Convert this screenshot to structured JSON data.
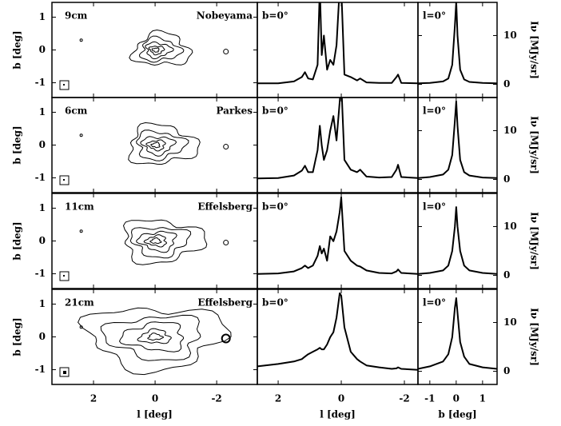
{
  "chart_data": [
    {
      "type": "contour",
      "label": "9cm",
      "telescope": "Nobeyama",
      "xlim": [
        3.35,
        -3.32
      ],
      "ylim": [
        -1.45,
        1.45
      ],
      "xticks": [
        2,
        0,
        -2
      ],
      "yticks": [
        1,
        0,
        -1
      ],
      "ylabel": "b [deg]"
    },
    {
      "type": "line",
      "annotation": "b=0°",
      "xlim": [
        2.66,
        -2.43
      ],
      "ylim": [
        -2.7,
        16.8
      ],
      "xticks": [
        2,
        0,
        -2
      ],
      "x": [
        2.66,
        2.0,
        1.5,
        1.25,
        1.15,
        1.05,
        0.9,
        0.75,
        0.68,
        0.62,
        0.55,
        0.45,
        0.35,
        0.25,
        0.15,
        0.05,
        0.0,
        -0.1,
        -0.3,
        -0.5,
        -0.6,
        -0.8,
        -1.2,
        -1.6,
        -1.75,
        -1.8,
        -1.9,
        -2.43
      ],
      "values": [
        0.2,
        0.2,
        0.6,
        1.5,
        2.5,
        1.2,
        1.0,
        4,
        20,
        6,
        10,
        3,
        5,
        4,
        8,
        20,
        20,
        2,
        1.5,
        0.8,
        1.2,
        0.4,
        0.3,
        0.3,
        1.5,
        2,
        0.3,
        0.2
      ]
    },
    {
      "type": "line",
      "annotation": "l=0°",
      "xlim": [
        -1.45,
        1.55
      ],
      "ylim": [
        -2.7,
        16.8
      ],
      "xticks": [
        -1,
        0,
        1
      ],
      "yticks": [
        0,
        10
      ],
      "ylabel": "Iν [MJy/sr]",
      "x": [
        -1.45,
        -1,
        -0.5,
        -0.3,
        -0.15,
        -0.05,
        0,
        0.05,
        0.15,
        0.3,
        0.5,
        1,
        1.55
      ],
      "values": [
        0.2,
        0.3,
        0.6,
        1.2,
        4,
        12,
        17,
        10,
        3,
        1,
        0.5,
        0.3,
        0.2
      ]
    },
    {
      "type": "contour",
      "label": "6cm",
      "telescope": "Parkes",
      "xlim": [
        3.35,
        -3.32
      ],
      "ylim": [
        -1.45,
        1.45
      ],
      "xticks": [
        2,
        0,
        -2
      ],
      "yticks": [
        1,
        0,
        -1
      ],
      "ylabel": "b [deg]"
    },
    {
      "type": "line",
      "annotation": "b=0°",
      "xlim": [
        2.66,
        -2.43
      ],
      "ylim": [
        -2.7,
        16.8
      ],
      "xticks": [
        2,
        0,
        -2
      ],
      "x": [
        2.66,
        2.0,
        1.5,
        1.25,
        1.15,
        1.05,
        0.9,
        0.75,
        0.68,
        0.62,
        0.55,
        0.45,
        0.35,
        0.25,
        0.15,
        0.05,
        0.0,
        -0.1,
        -0.3,
        -0.5,
        -0.6,
        -0.8,
        -1.2,
        -1.6,
        -1.75,
        -1.8,
        -1.9,
        -2.43
      ],
      "values": [
        0.2,
        0.3,
        0.8,
        1.8,
        2.8,
        1.5,
        1.5,
        6,
        11,
        7,
        4,
        6,
        10,
        13,
        8,
        16,
        20,
        4,
        2,
        1.5,
        2,
        0.6,
        0.4,
        0.5,
        2,
        3,
        0.5,
        0.3
      ]
    },
    {
      "type": "line",
      "annotation": "l=0°",
      "xlim": [
        -1.45,
        1.55
      ],
      "ylim": [
        -2.7,
        16.8
      ],
      "xticks": [
        -1,
        0,
        1
      ],
      "yticks": [
        0,
        10
      ],
      "ylabel": "Iν [MJy/sr]",
      "x": [
        -1.45,
        -1,
        -0.5,
        -0.3,
        -0.15,
        -0.05,
        0,
        0.05,
        0.15,
        0.3,
        0.5,
        1,
        1.55
      ],
      "values": [
        0.3,
        0.5,
        1,
        2,
        5,
        12,
        16,
        11,
        4,
        1.5,
        0.8,
        0.4,
        0.3
      ]
    },
    {
      "type": "contour",
      "label": "11cm",
      "telescope": "Effelsberg",
      "xlim": [
        3.35,
        -3.32
      ],
      "ylim": [
        -1.45,
        1.45
      ],
      "xticks": [
        2,
        0,
        -2
      ],
      "yticks": [
        1,
        0,
        -1
      ],
      "ylabel": "b [deg]"
    },
    {
      "type": "line",
      "annotation": "b=0°",
      "xlim": [
        2.66,
        -2.43
      ],
      "ylim": [
        -2.7,
        16.8
      ],
      "xticks": [
        2,
        0,
        -2
      ],
      "x": [
        2.66,
        2.0,
        1.5,
        1.25,
        1.15,
        1.05,
        0.9,
        0.75,
        0.68,
        0.62,
        0.55,
        0.45,
        0.35,
        0.25,
        0.15,
        0.05,
        0.0,
        -0.1,
        -0.3,
        -0.5,
        -0.6,
        -0.8,
        -1.2,
        -1.6,
        -1.75,
        -1.8,
        -1.9,
        -2.43
      ],
      "values": [
        0.3,
        0.4,
        0.8,
        1.5,
        2,
        1.5,
        2,
        4,
        6,
        4.5,
        5.5,
        3,
        8,
        7,
        9,
        13,
        16,
        5,
        3,
        2,
        1.8,
        1,
        0.5,
        0.4,
        0.8,
        1.2,
        0.5,
        0.3
      ]
    },
    {
      "type": "line",
      "annotation": "l=0°",
      "xlim": [
        -1.45,
        1.55
      ],
      "ylim": [
        -2.7,
        16.8
      ],
      "xticks": [
        -1,
        0,
        1
      ],
      "yticks": [
        0,
        10
      ],
      "ylabel": "Iν [MJy/sr]",
      "x": [
        -1.45,
        -1,
        -0.5,
        -0.3,
        -0.15,
        -0.05,
        0,
        0.05,
        0.15,
        0.3,
        0.5,
        1,
        1.55
      ],
      "values": [
        0.3,
        0.5,
        1,
        2,
        5,
        10,
        14,
        10,
        5,
        2,
        1,
        0.5,
        0.3
      ]
    },
    {
      "type": "contour",
      "label": "21cm",
      "telescope": "Effelsberg",
      "xlim": [
        3.35,
        -3.32
      ],
      "ylim": [
        -1.45,
        1.45
      ],
      "xticks": [
        2,
        0,
        -2
      ],
      "yticks": [
        1,
        0,
        -1
      ],
      "ylabel": "b [deg]",
      "xlabel": "l [deg]"
    },
    {
      "type": "line",
      "annotation": "b=0°",
      "xlim": [
        2.66,
        -2.43
      ],
      "ylim": [
        -2.7,
        16.8
      ],
      "xticks": [
        2,
        0,
        -2
      ],
      "xlabel": "l [deg]",
      "x": [
        2.66,
        2.0,
        1.5,
        1.25,
        1.15,
        1.05,
        0.9,
        0.75,
        0.68,
        0.62,
        0.55,
        0.45,
        0.35,
        0.25,
        0.15,
        0.05,
        0.0,
        -0.1,
        -0.3,
        -0.5,
        -0.6,
        -0.8,
        -1.2,
        -1.6,
        -1.75,
        -1.8,
        -1.9,
        -2.43
      ],
      "values": [
        1,
        1.5,
        2,
        2.5,
        3,
        3.5,
        4,
        4.5,
        4.8,
        4.5,
        4.5,
        5.5,
        7,
        8,
        11,
        16,
        15.5,
        9,
        4,
        2.5,
        2,
        1.2,
        0.8,
        0.5,
        0.6,
        0.8,
        0.5,
        0.3
      ]
    },
    {
      "type": "line",
      "annotation": "l=0°",
      "xlim": [
        -1.45,
        1.55
      ],
      "ylim": [
        -2.7,
        16.8
      ],
      "xticks": [
        -1,
        0,
        1
      ],
      "yticks": [
        0,
        10
      ],
      "ylabel": "Iν [MJy/sr]",
      "xlabel": "b [deg]",
      "x": [
        -1.45,
        -1,
        -0.5,
        -0.3,
        -0.15,
        -0.05,
        0,
        0.05,
        0.15,
        0.3,
        0.5,
        1,
        1.55
      ],
      "values": [
        0.5,
        1,
        2,
        3.5,
        7,
        13,
        15,
        12,
        6,
        3,
        1.5,
        0.8,
        0.5
      ]
    }
  ]
}
